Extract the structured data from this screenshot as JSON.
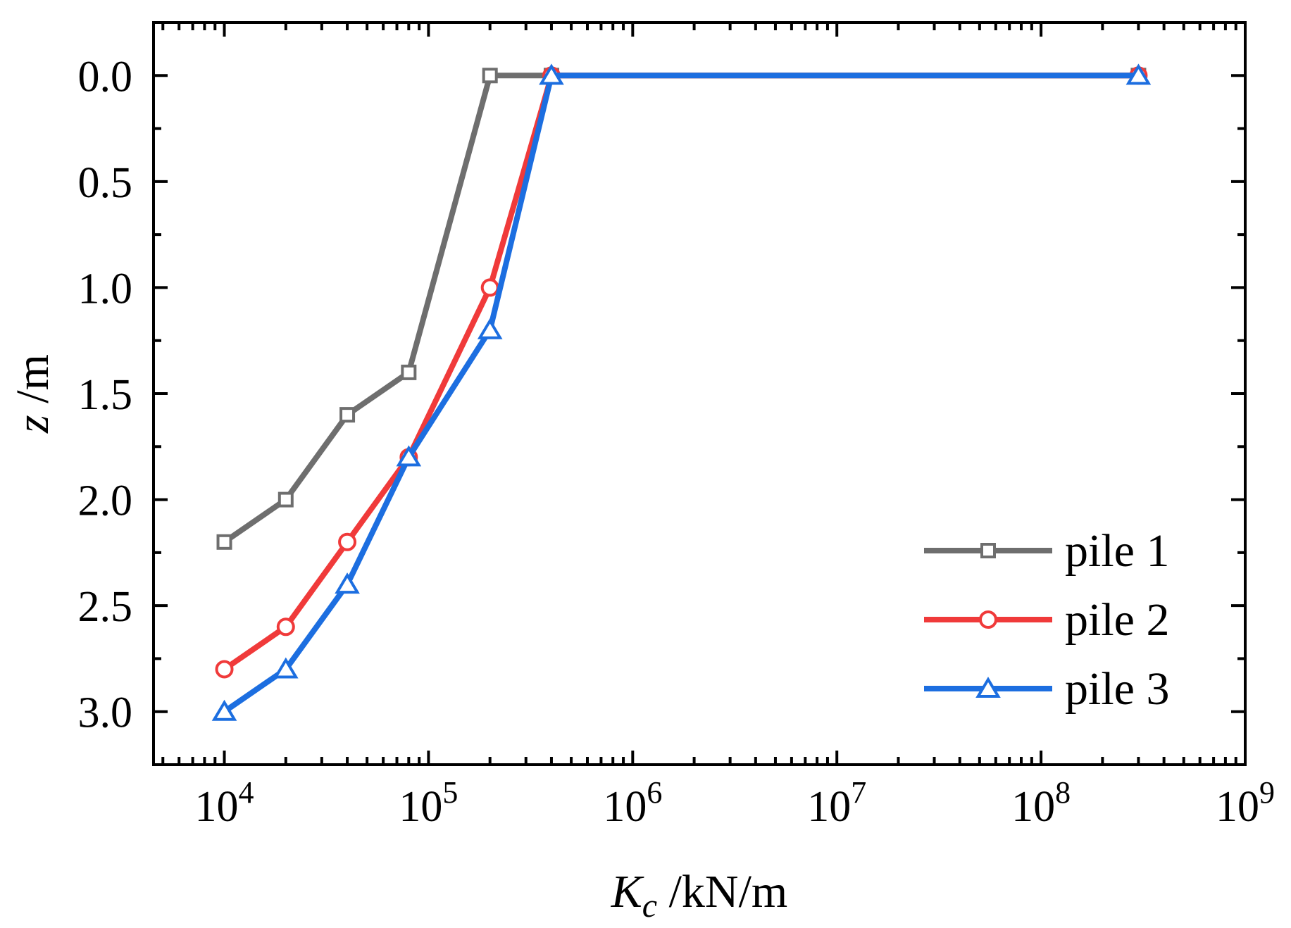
{
  "chart_data": {
    "type": "line",
    "x_scale": "log",
    "y_inverted": true,
    "xlabel": {
      "symbol": "K",
      "subscript": "c",
      "unit": " /kN/m"
    },
    "ylabel": {
      "symbol": "z",
      "unit": " /m"
    },
    "xlim": [
      4500,
      1000000000
    ],
    "ylim": [
      -0.25,
      3.25
    ],
    "x_ticks": [
      {
        "value": 10000,
        "base": "10",
        "exp": "4"
      },
      {
        "value": 100000,
        "base": "10",
        "exp": "5"
      },
      {
        "value": 1000000,
        "base": "10",
        "exp": "6"
      },
      {
        "value": 10000000,
        "base": "10",
        "exp": "7"
      },
      {
        "value": 100000000,
        "base": "10",
        "exp": "8"
      },
      {
        "value": 1000000000,
        "base": "10",
        "exp": "9"
      }
    ],
    "y_ticks": [
      {
        "value": 0.0,
        "label": "0.0"
      },
      {
        "value": 0.5,
        "label": "0.5"
      },
      {
        "value": 1.0,
        "label": "1.0"
      },
      {
        "value": 1.5,
        "label": "1.5"
      },
      {
        "value": 2.0,
        "label": "2.0"
      },
      {
        "value": 2.5,
        "label": "2.5"
      },
      {
        "value": 3.0,
        "label": "3.0"
      }
    ],
    "legend_position": "bottom-right",
    "series": [
      {
        "name": "pile 1",
        "color": "#6e6e6e",
        "marker": "square",
        "x": [
          10000,
          20000,
          40000,
          80000,
          200000,
          400000,
          300000000
        ],
        "y": [
          2.2,
          2.0,
          1.6,
          1.4,
          0.0,
          0.0,
          0.0
        ]
      },
      {
        "name": "pile 2",
        "color": "#f03a3a",
        "marker": "circle",
        "x": [
          10000,
          20000,
          40000,
          80000,
          200000,
          400000,
          300000000
        ],
        "y": [
          2.8,
          2.6,
          2.2,
          1.8,
          1.0,
          0.0,
          0.0
        ]
      },
      {
        "name": "pile 3",
        "color": "#1c6ee0",
        "marker": "triangle",
        "x": [
          10000,
          20000,
          40000,
          80000,
          200000,
          400000,
          300000000
        ],
        "y": [
          3.0,
          2.8,
          2.4,
          1.8,
          1.2,
          0.0,
          0.0
        ]
      }
    ]
  }
}
